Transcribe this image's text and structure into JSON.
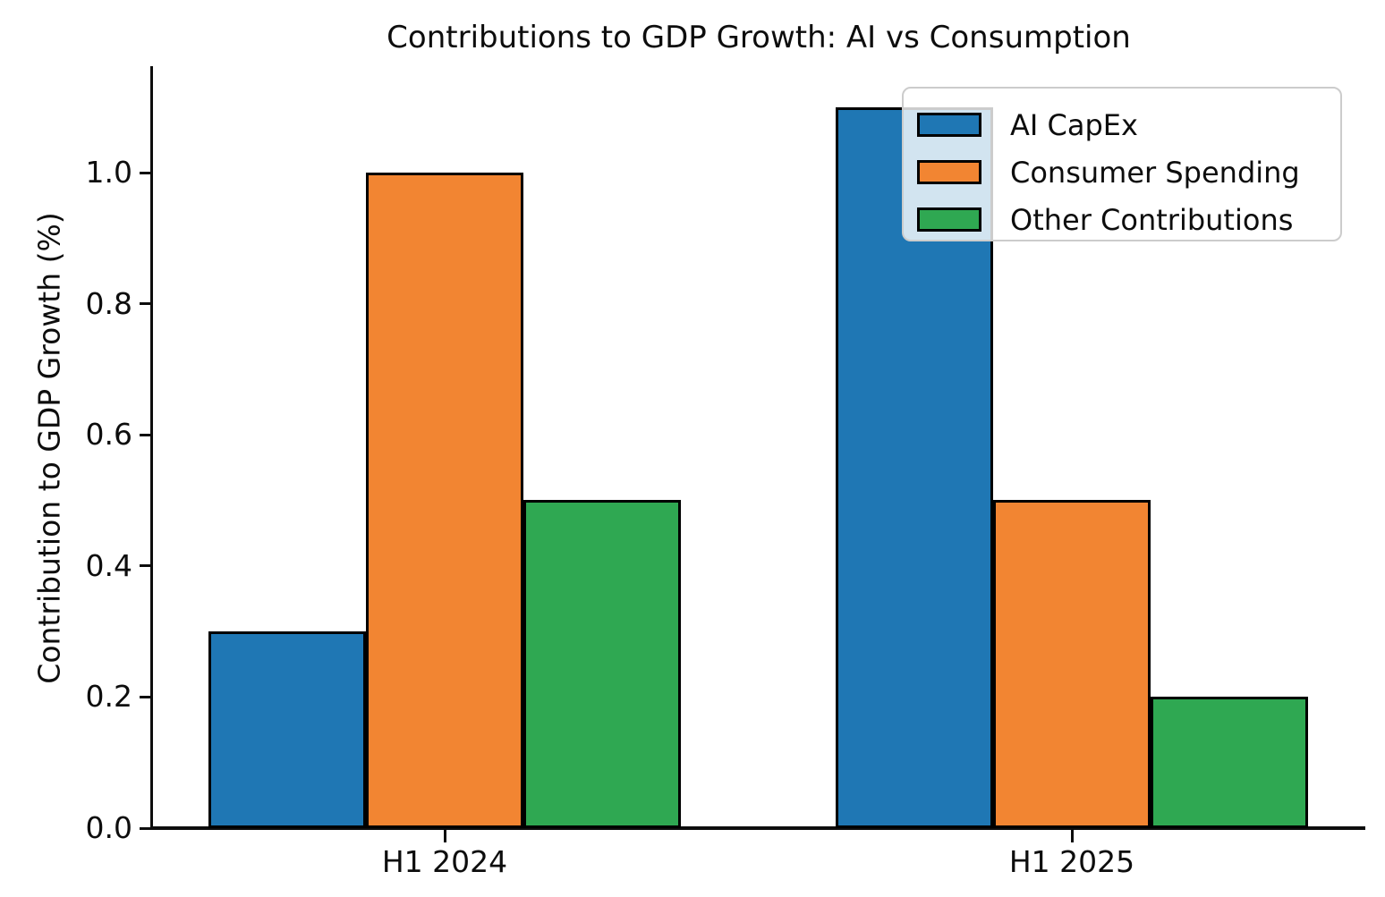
{
  "chart_data": {
    "type": "bar",
    "title": "Contributions to GDP Growth: AI vs Consumption",
    "xlabel": "",
    "ylabel": "Contribution to GDP Growth (%)",
    "categories": [
      "H1 2024",
      "H1 2025"
    ],
    "series": [
      {
        "name": "AI CapEx",
        "color": "#1f77b4",
        "values": [
          0.3,
          1.1
        ]
      },
      {
        "name": "Consumer Spending",
        "color": "#f28532",
        "values": [
          1.0,
          0.5
        ]
      },
      {
        "name": "Other Contributions",
        "color": "#2fa852",
        "values": [
          0.5,
          0.2
        ]
      }
    ],
    "ylim": [
      0,
      1.16
    ],
    "yticks": [
      0.0,
      0.2,
      0.4,
      0.6,
      0.8,
      1.0
    ],
    "ytick_labels": [
      "0.0",
      "0.2",
      "0.4",
      "0.6",
      "0.8",
      "1.0"
    ],
    "grid": false,
    "bar_edge_color": "#000000",
    "legend": {
      "position": "upper right",
      "entries": [
        "AI CapEx",
        "Consumer Spending",
        "Other Contributions"
      ]
    }
  }
}
